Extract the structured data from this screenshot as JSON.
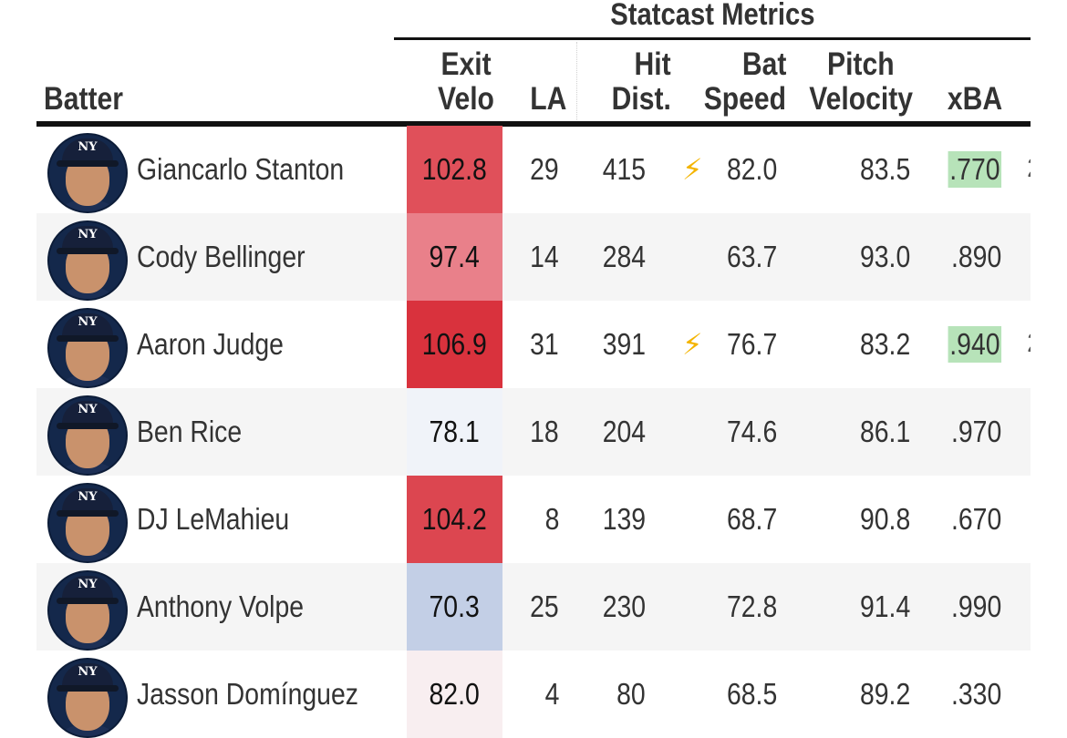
{
  "header": {
    "spanner": "Statcast Metrics",
    "columns": {
      "batter": "Batter",
      "exit_velo": [
        "Exit",
        "Velo"
      ],
      "la": "LA",
      "hit_dist": [
        "Hit",
        "Dist."
      ],
      "bat_speed": [
        "Bat",
        "Speed"
      ],
      "pitch_velocity": [
        "Pitch",
        "Velocity"
      ],
      "xba": "xBA"
    }
  },
  "colors": {
    "header_rule": "#111111",
    "row_shade": "#f5f5f5",
    "xba_highlight": "#b7e3b9",
    "bolt": "#f4b400"
  },
  "rows": [
    {
      "batter": "Giancarlo Stanton",
      "exit_velo": "102.8",
      "exit_velo_color": "#e0505a",
      "la": "29",
      "hit_dist": "415",
      "bat_speed": "82.0",
      "bat_speed_icon": "⚡",
      "pitch_velocity": "83.5",
      "xba": ".770",
      "xba_highlight": true,
      "shaded": false
    },
    {
      "batter": "Cody Bellinger",
      "exit_velo": "97.4",
      "exit_velo_color": "#e9808a",
      "la": "14",
      "hit_dist": "284",
      "bat_speed": "63.7",
      "bat_speed_icon": "",
      "pitch_velocity": "93.0",
      "xba": ".890",
      "xba_highlight": false,
      "shaded": true
    },
    {
      "batter": "Aaron Judge",
      "exit_velo": "106.9",
      "exit_velo_color": "#d9323d",
      "la": "31",
      "hit_dist": "391",
      "bat_speed": "76.7",
      "bat_speed_icon": "⚡",
      "pitch_velocity": "83.2",
      "xba": ".940",
      "xba_highlight": true,
      "shaded": false
    },
    {
      "batter": "Ben Rice",
      "exit_velo": "78.1",
      "exit_velo_color": "#f0f3f9",
      "la": "18",
      "hit_dist": "204",
      "bat_speed": "74.6",
      "bat_speed_icon": "",
      "pitch_velocity": "86.1",
      "xba": ".970",
      "xba_highlight": false,
      "shaded": true
    },
    {
      "batter": "DJ LeMahieu",
      "exit_velo": "104.2",
      "exit_velo_color": "#dc4650",
      "la": "8",
      "hit_dist": "139",
      "bat_speed": "68.7",
      "bat_speed_icon": "",
      "pitch_velocity": "90.8",
      "xba": ".670",
      "xba_highlight": false,
      "shaded": false
    },
    {
      "batter": "Anthony Volpe",
      "exit_velo": "70.3",
      "exit_velo_color": "#c3cfe6",
      "la": "25",
      "hit_dist": "230",
      "bat_speed": "72.8",
      "bat_speed_icon": "",
      "pitch_velocity": "91.4",
      "xba": ".990",
      "xba_highlight": false,
      "shaded": true
    },
    {
      "batter": "Jasson Domínguez",
      "exit_velo": "82.0",
      "exit_velo_color": "#f8eef0",
      "la": "4",
      "hit_dist": "80",
      "bat_speed": "68.5",
      "bat_speed_icon": "",
      "pitch_velocity": "89.2",
      "xba": ".330",
      "xba_highlight": false,
      "shaded": false
    }
  ]
}
